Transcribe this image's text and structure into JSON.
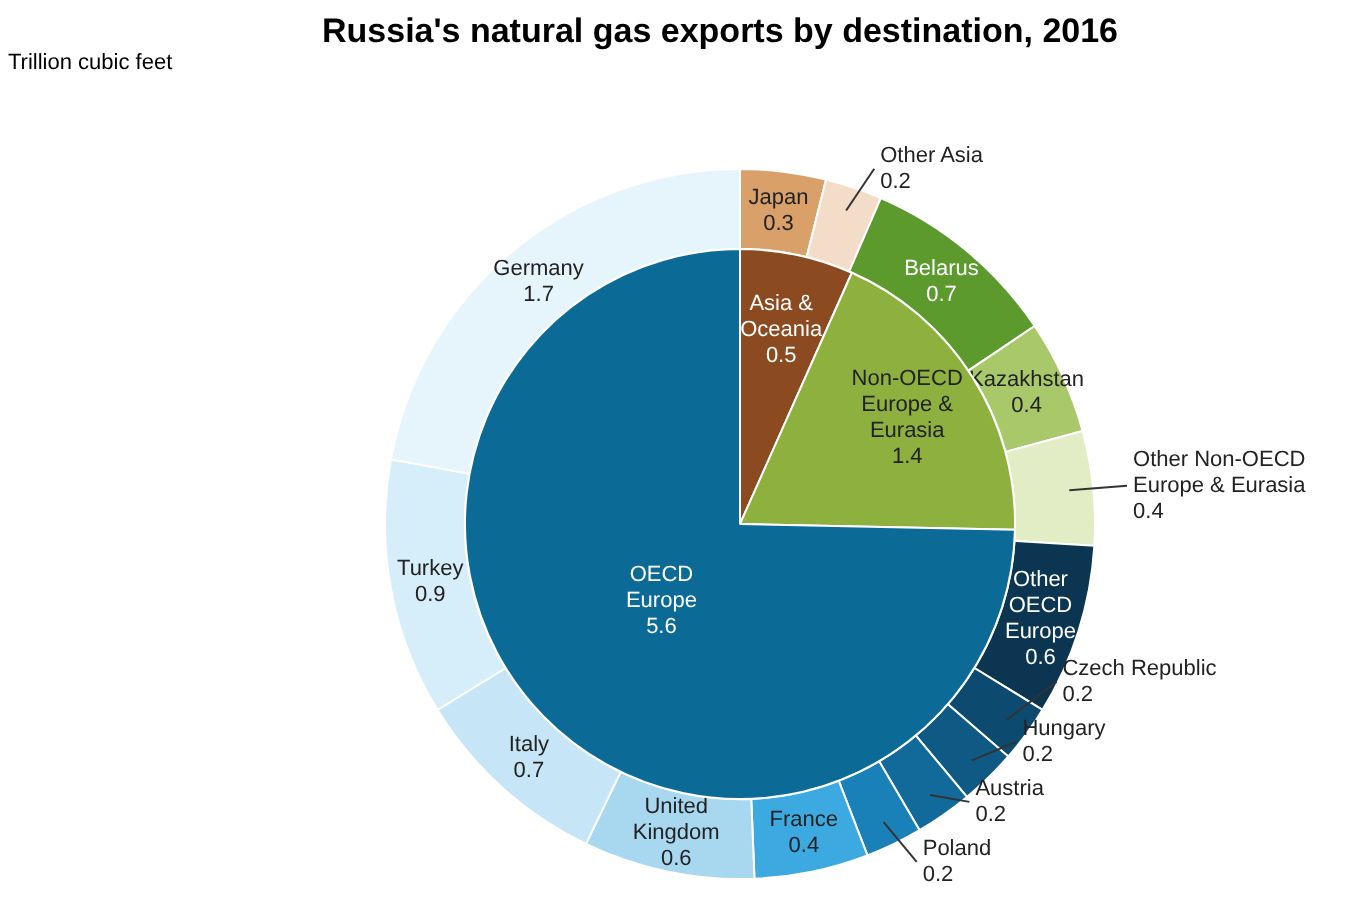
{
  "chart_data": [
    {
      "type": "donut",
      "title": "Russia's natural gas exports by destination, 2016",
      "annotations": [
        "Trillion cubic feet"
      ],
      "data_labels": true,
      "categories": [
        "Japan",
        "Other Asia",
        "Belarus",
        "Kazakhstan",
        "Other Non-OECD Europe & Eurasia",
        "Other OECD Europe",
        "Czech Republic",
        "Hungary",
        "Austria",
        "Poland",
        "France",
        "United Kingdom",
        "Italy",
        "Turkey",
        "Germany"
      ],
      "values": [
        0.3,
        0.2,
        0.7,
        0.4,
        0.4,
        0.6,
        0.2,
        0.2,
        0.2,
        0.2,
        0.4,
        0.6,
        0.7,
        0.9,
        1.7
      ],
      "colors": [
        "#d9a06a",
        "#f3dcc8",
        "#5c9a2e",
        "#a8c86a",
        "#e2ecc5",
        "#0b3550",
        "#0d4a70",
        "#0f5a85",
        "#126a9a",
        "#1a80b8",
        "#3ca9e0",
        "#a8d8f0",
        "#c6e6f7",
        "#d6eef9",
        "#e6f4fc"
      ]
    },
    {
      "type": "pie",
      "data_labels": true,
      "categories": [
        "Asia & Oceania",
        "Non-OECD Europe & Eurasia",
        "OECD Europe"
      ],
      "values": [
        0.5,
        1.4,
        5.6
      ],
      "colors": [
        "#8b4a1f",
        "#8db03e",
        "#0b6a96"
      ]
    }
  ]
}
